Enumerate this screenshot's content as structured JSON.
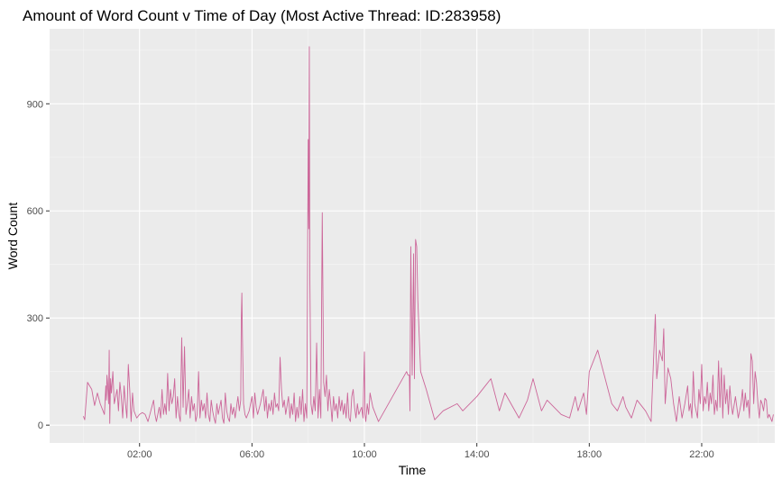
{
  "colors": {
    "panel_background": "#ebebeb",
    "grid_major": "#ffffff",
    "grid_minor": "#f5f5f5",
    "line": "#cc6699",
    "axis_text": "#4d4d4d",
    "title_text": "#000000"
  },
  "chart_data": {
    "type": "line",
    "title": "Amount of Word Count v Time of Day (Most Active Thread: ID:283958)",
    "xlabel": "Time",
    "ylabel": "Word Count",
    "x_unit": "hours",
    "xlim": [
      -1.2,
      24.6
    ],
    "ylim": [
      -50,
      1110
    ],
    "x_ticks": [
      {
        "value": 2,
        "label": "02:00"
      },
      {
        "value": 6,
        "label": "06:00"
      },
      {
        "value": 10,
        "label": "10:00"
      },
      {
        "value": 14,
        "label": "14:00"
      },
      {
        "value": 18,
        "label": "18:00"
      },
      {
        "value": 22,
        "label": "22:00"
      }
    ],
    "y_ticks": [
      {
        "value": 0,
        "label": "0"
      },
      {
        "value": 300,
        "label": "300"
      },
      {
        "value": 600,
        "label": "600"
      },
      {
        "value": 900,
        "label": "900"
      }
    ],
    "grid": true,
    "series": [
      {
        "points": [
          [
            0.0,
            25
          ],
          [
            0.05,
            15
          ],
          [
            0.15,
            120
          ],
          [
            0.3,
            100
          ],
          [
            0.4,
            55
          ],
          [
            0.5,
            90
          ],
          [
            0.6,
            60
          ],
          [
            0.7,
            40
          ],
          [
            0.75,
            30
          ],
          [
            0.8,
            110
          ],
          [
            0.82,
            70
          ],
          [
            0.84,
            140
          ],
          [
            0.86,
            120
          ],
          [
            0.9,
            60
          ],
          [
            0.92,
            210
          ],
          [
            0.94,
            5
          ],
          [
            0.97,
            130
          ],
          [
            1.0,
            90
          ],
          [
            1.05,
            150
          ],
          [
            1.1,
            60
          ],
          [
            1.2,
            100
          ],
          [
            1.25,
            40
          ],
          [
            1.3,
            120
          ],
          [
            1.35,
            80
          ],
          [
            1.4,
            20
          ],
          [
            1.45,
            110
          ],
          [
            1.5,
            60
          ],
          [
            1.55,
            20
          ],
          [
            1.6,
            170
          ],
          [
            1.65,
            100
          ],
          [
            1.7,
            10
          ],
          [
            1.75,
            90
          ],
          [
            1.8,
            40
          ],
          [
            1.9,
            20
          ],
          [
            2.0,
            30
          ],
          [
            2.1,
            35
          ],
          [
            2.2,
            30
          ],
          [
            2.3,
            10
          ],
          [
            2.4,
            40
          ],
          [
            2.5,
            70
          ],
          [
            2.55,
            30
          ],
          [
            2.6,
            10
          ],
          [
            2.7,
            50
          ],
          [
            2.75,
            20
          ],
          [
            2.8,
            100
          ],
          [
            2.85,
            30
          ],
          [
            2.9,
            60
          ],
          [
            2.95,
            30
          ],
          [
            3.0,
            145
          ],
          [
            3.05,
            40
          ],
          [
            3.1,
            100
          ],
          [
            3.15,
            60
          ],
          [
            3.2,
            80
          ],
          [
            3.25,
            130
          ],
          [
            3.3,
            20
          ],
          [
            3.35,
            80
          ],
          [
            3.4,
            30
          ],
          [
            3.45,
            10
          ],
          [
            3.5,
            245
          ],
          [
            3.55,
            50
          ],
          [
            3.6,
            220
          ],
          [
            3.65,
            30
          ],
          [
            3.7,
            60
          ],
          [
            3.75,
            100
          ],
          [
            3.8,
            20
          ],
          [
            3.85,
            80
          ],
          [
            3.9,
            40
          ],
          [
            3.95,
            60
          ],
          [
            4.0,
            10
          ],
          [
            4.05,
            30
          ],
          [
            4.1,
            150
          ],
          [
            4.15,
            20
          ],
          [
            4.2,
            70
          ],
          [
            4.25,
            40
          ],
          [
            4.3,
            60
          ],
          [
            4.35,
            20
          ],
          [
            4.4,
            90
          ],
          [
            4.45,
            30
          ],
          [
            4.5,
            10
          ],
          [
            4.55,
            70
          ],
          [
            4.6,
            40
          ],
          [
            4.65,
            20
          ],
          [
            4.7,
            5
          ],
          [
            4.75,
            60
          ],
          [
            4.8,
            30
          ],
          [
            4.9,
            70
          ],
          [
            4.95,
            20
          ],
          [
            5.0,
            5
          ],
          [
            5.05,
            90
          ],
          [
            5.1,
            40
          ],
          [
            5.15,
            20
          ],
          [
            5.2,
            10
          ],
          [
            5.25,
            60
          ],
          [
            5.3,
            30
          ],
          [
            5.35,
            50
          ],
          [
            5.4,
            20
          ],
          [
            5.5,
            80
          ],
          [
            5.55,
            40
          ],
          [
            5.6,
            70
          ],
          [
            5.62,
            300
          ],
          [
            5.64,
            370
          ],
          [
            5.66,
            250
          ],
          [
            5.7,
            60
          ],
          [
            5.75,
            30
          ],
          [
            5.8,
            20
          ],
          [
            5.9,
            40
          ],
          [
            6.0,
            80
          ],
          [
            6.05,
            20
          ],
          [
            6.1,
            90
          ],
          [
            6.15,
            50
          ],
          [
            6.2,
            30
          ],
          [
            6.3,
            60
          ],
          [
            6.4,
            100
          ],
          [
            6.45,
            40
          ],
          [
            6.5,
            80
          ],
          [
            6.55,
            20
          ],
          [
            6.6,
            60
          ],
          [
            6.65,
            40
          ],
          [
            6.7,
            70
          ],
          [
            6.75,
            30
          ],
          [
            6.8,
            90
          ],
          [
            6.85,
            50
          ],
          [
            6.9,
            60
          ],
          [
            6.95,
            40
          ],
          [
            7.0,
            190
          ],
          [
            7.05,
            100
          ],
          [
            7.1,
            50
          ],
          [
            7.15,
            70
          ],
          [
            7.2,
            30
          ],
          [
            7.3,
            80
          ],
          [
            7.35,
            20
          ],
          [
            7.4,
            60
          ],
          [
            7.45,
            30
          ],
          [
            7.5,
            90
          ],
          [
            7.55,
            10
          ],
          [
            7.6,
            50
          ],
          [
            7.65,
            20
          ],
          [
            7.7,
            80
          ],
          [
            7.75,
            30
          ],
          [
            7.8,
            100
          ],
          [
            7.85,
            10
          ],
          [
            7.9,
            60
          ],
          [
            7.95,
            20
          ],
          [
            8.0,
            800
          ],
          [
            8.02,
            550
          ],
          [
            8.04,
            1060
          ],
          [
            8.06,
            400
          ],
          [
            8.1,
            60
          ],
          [
            8.15,
            30
          ],
          [
            8.2,
            80
          ],
          [
            8.25,
            40
          ],
          [
            8.3,
            230
          ],
          [
            8.35,
            20
          ],
          [
            8.4,
            100
          ],
          [
            8.45,
            20
          ],
          [
            8.5,
            595
          ],
          [
            8.55,
            120
          ],
          [
            8.6,
            80
          ],
          [
            8.65,
            140
          ],
          [
            8.7,
            40
          ],
          [
            8.75,
            100
          ],
          [
            8.8,
            60
          ],
          [
            8.85,
            10
          ],
          [
            8.9,
            80
          ],
          [
            8.95,
            40
          ],
          [
            9.0,
            60
          ],
          [
            9.05,
            20
          ],
          [
            9.1,
            80
          ],
          [
            9.15,
            40
          ],
          [
            9.2,
            70
          ],
          [
            9.25,
            30
          ],
          [
            9.3,
            60
          ],
          [
            9.35,
            20
          ],
          [
            9.4,
            90
          ],
          [
            9.45,
            20
          ],
          [
            9.5,
            10
          ],
          [
            9.55,
            80
          ],
          [
            9.6,
            100
          ],
          [
            9.65,
            50
          ],
          [
            9.7,
            20
          ],
          [
            9.75,
            60
          ],
          [
            9.8,
            30
          ],
          [
            9.85,
            40
          ],
          [
            9.9,
            50
          ],
          [
            9.95,
            20
          ],
          [
            10.0,
            205
          ],
          [
            10.02,
            30
          ],
          [
            10.05,
            10
          ],
          [
            10.1,
            60
          ],
          [
            10.15,
            30
          ],
          [
            10.2,
            90
          ],
          [
            10.3,
            50
          ],
          [
            10.4,
            30
          ],
          [
            10.5,
            10
          ],
          [
            11.5,
            150
          ],
          [
            11.55,
            140
          ],
          [
            11.6,
            140
          ],
          [
            11.62,
            40
          ],
          [
            11.65,
            500
          ],
          [
            11.7,
            140
          ],
          [
            11.75,
            480
          ],
          [
            11.78,
            130
          ],
          [
            11.82,
            520
          ],
          [
            11.86,
            500
          ],
          [
            11.9,
            350
          ],
          [
            11.95,
            250
          ],
          [
            12.0,
            150
          ],
          [
            12.2,
            100
          ],
          [
            12.5,
            15
          ],
          [
            12.8,
            40
          ],
          [
            13.3,
            60
          ],
          [
            13.5,
            40
          ],
          [
            14.0,
            80
          ],
          [
            14.3,
            110
          ],
          [
            14.5,
            130
          ],
          [
            14.8,
            40
          ],
          [
            15.0,
            90
          ],
          [
            15.5,
            20
          ],
          [
            15.8,
            70
          ],
          [
            16.0,
            130
          ],
          [
            16.3,
            40
          ],
          [
            16.5,
            70
          ],
          [
            17.0,
            30
          ],
          [
            17.3,
            20
          ],
          [
            17.5,
            80
          ],
          [
            17.6,
            40
          ],
          [
            17.8,
            90
          ],
          [
            17.9,
            30
          ],
          [
            18.0,
            150
          ],
          [
            18.3,
            210
          ],
          [
            18.8,
            60
          ],
          [
            19.0,
            40
          ],
          [
            19.2,
            80
          ],
          [
            19.3,
            50
          ],
          [
            19.5,
            20
          ],
          [
            19.7,
            70
          ],
          [
            20.0,
            40
          ],
          [
            20.2,
            10
          ],
          [
            20.35,
            310
          ],
          [
            20.4,
            130
          ],
          [
            20.5,
            210
          ],
          [
            20.6,
            180
          ],
          [
            20.65,
            270
          ],
          [
            20.7,
            60
          ],
          [
            20.8,
            160
          ],
          [
            20.9,
            130
          ],
          [
            21.0,
            60
          ],
          [
            21.1,
            10
          ],
          [
            21.2,
            80
          ],
          [
            21.3,
            20
          ],
          [
            21.4,
            60
          ],
          [
            21.5,
            110
          ],
          [
            21.55,
            40
          ],
          [
            21.6,
            60
          ],
          [
            21.65,
            20
          ],
          [
            21.7,
            150
          ],
          [
            21.75,
            60
          ],
          [
            21.8,
            40
          ],
          [
            21.85,
            20
          ],
          [
            21.9,
            100
          ],
          [
            21.95,
            60
          ],
          [
            22.0,
            170
          ],
          [
            22.05,
            40
          ],
          [
            22.1,
            80
          ],
          [
            22.15,
            60
          ],
          [
            22.2,
            120
          ],
          [
            22.25,
            40
          ],
          [
            22.3,
            90
          ],
          [
            22.35,
            60
          ],
          [
            22.4,
            140
          ],
          [
            22.45,
            30
          ],
          [
            22.5,
            70
          ],
          [
            22.55,
            40
          ],
          [
            22.6,
            180
          ],
          [
            22.65,
            50
          ],
          [
            22.7,
            160
          ],
          [
            22.75,
            20
          ],
          [
            22.8,
            140
          ],
          [
            22.85,
            60
          ],
          [
            22.9,
            100
          ],
          [
            22.95,
            30
          ],
          [
            23.0,
            110
          ],
          [
            23.05,
            60
          ],
          [
            23.1,
            30
          ],
          [
            23.2,
            80
          ],
          [
            23.3,
            20
          ],
          [
            23.4,
            60
          ],
          [
            23.45,
            100
          ],
          [
            23.5,
            40
          ],
          [
            23.55,
            90
          ],
          [
            23.6,
            50
          ],
          [
            23.65,
            70
          ],
          [
            23.7,
            20
          ],
          [
            23.75,
            200
          ],
          [
            23.8,
            180
          ],
          [
            23.85,
            60
          ],
          [
            23.9,
            150
          ],
          [
            23.95,
            120
          ],
          [
            24.0,
            60
          ],
          [
            24.05,
            20
          ],
          [
            24.1,
            70
          ],
          [
            24.15,
            60
          ],
          [
            24.2,
            40
          ],
          [
            24.25,
            75
          ],
          [
            24.3,
            70
          ],
          [
            24.35,
            20
          ],
          [
            24.4,
            30
          ],
          [
            24.5,
            10
          ],
          [
            24.55,
            30
          ]
        ]
      }
    ]
  }
}
